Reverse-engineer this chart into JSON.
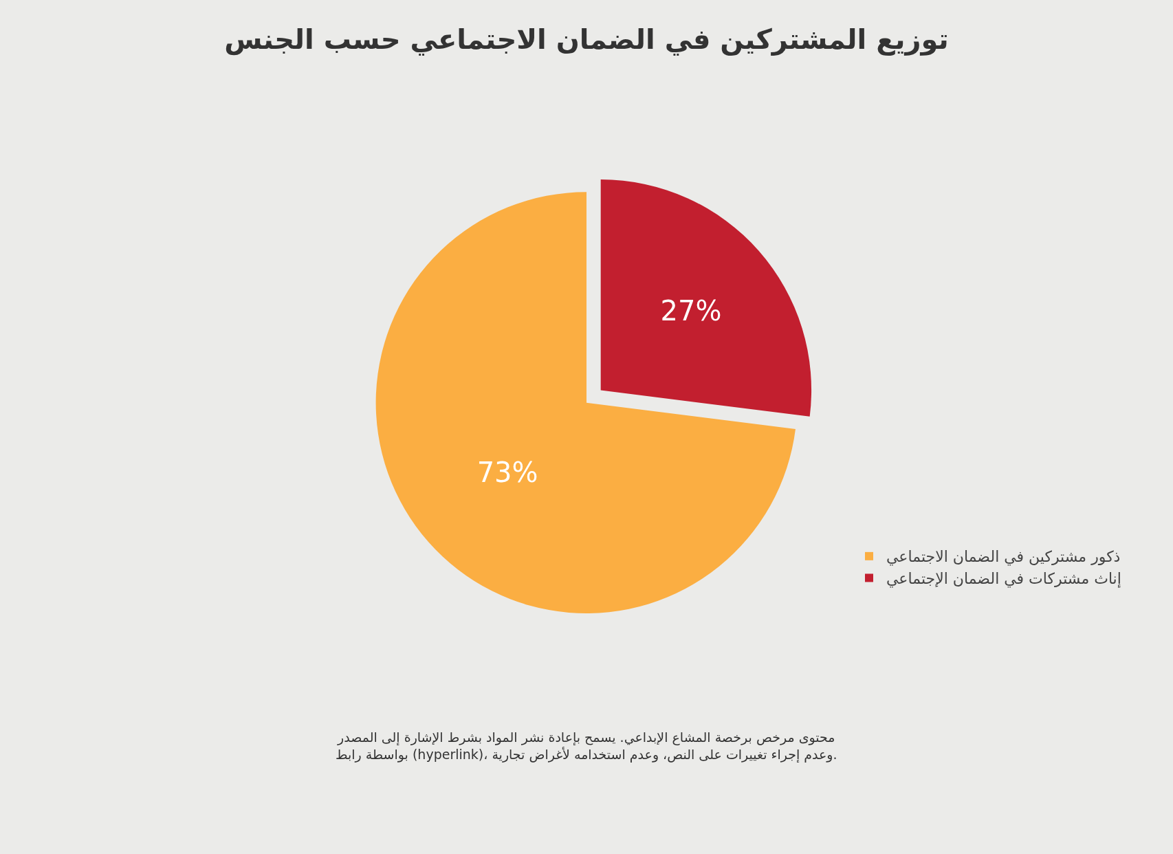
{
  "chart_data": {
    "type": "pie",
    "title": "توزيع المشتركين في الضمان الاجتماعي حسب الجنس",
    "categories": [
      "ذكور مشتركين في الضمان الاجتماعي",
      "إناث مشتركات في الضمان الإجتماعي"
    ],
    "values": [
      73,
      27
    ],
    "colors": [
      "#fbae42",
      "#c21f2f"
    ],
    "value_labels": [
      "73%",
      "27%"
    ],
    "legend": "bottom right",
    "annotations": [
      "محتوى مرخص برخصة المشاع الإبداعي. يسمح بإعادة نشر المواد بشرط الإشارة إلى المصدر بواسطة رابط (hyperlink)، وعدم إجراء تغييرات على النص، وعدم استخدامه لأغراض تجارية."
    ]
  }
}
